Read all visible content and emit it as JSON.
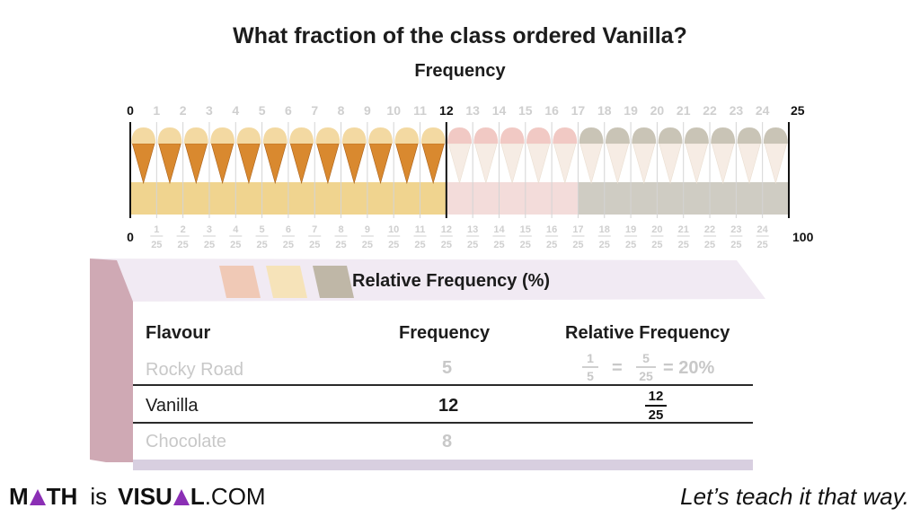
{
  "title": "What fraction of the class ordered  Vanilla?",
  "subtitle": "Frequency",
  "top_ticks": [
    "0",
    "1",
    "2",
    "3",
    "4",
    "5",
    "6",
    "7",
    "8",
    "9",
    "10",
    "11",
    "12",
    "13",
    "14",
    "15",
    "16",
    "17",
    "18",
    "19",
    "20",
    "21",
    "22",
    "23",
    "24",
    "25"
  ],
  "bottom_left_label": "0",
  "bottom_right_label": "100",
  "bottom_fractions": {
    "numerators": [
      "1",
      "2",
      "3",
      "4",
      "5",
      "6",
      "7",
      "8",
      "9",
      "10",
      "11",
      "12",
      "13",
      "14",
      "15",
      "16",
      "17",
      "18",
      "19",
      "20",
      "21",
      "22",
      "23",
      "24"
    ],
    "denominator": "25"
  },
  "segments": [
    {
      "flavour": "Vanilla",
      "count": 12,
      "color": "#f0d48f",
      "cone_top": "#f3d9a2",
      "state": "active"
    },
    {
      "flavour": "Rocky Road",
      "count": 5,
      "color": "#f3dcda",
      "cone_top": "#f1c9c4",
      "state": "faded"
    },
    {
      "flavour": "Chocolate",
      "count": 8,
      "color": "#cfccc3",
      "cone_top": "#c9c4b6",
      "state": "faded"
    }
  ],
  "relative_frequency_title": "Relative Frequency (%)",
  "table": {
    "headers": [
      "Flavour",
      "Frequency",
      "Relative Frequency"
    ],
    "rows": [
      {
        "flavour": "Rocky Road",
        "frequency": "5",
        "rf_frac_n": "1",
        "rf_frac_d": "5",
        "rf_eq1": "=",
        "rf_frac2_n": "5",
        "rf_frac2_d": "25",
        "rf_eq2": "= 20%"
      },
      {
        "flavour": "Vanilla",
        "frequency": "12",
        "rf_frac_n": "12",
        "rf_frac_d": "25"
      },
      {
        "flavour": "Chocolate",
        "frequency": "8"
      }
    ]
  },
  "footer": {
    "logo_m": "M",
    "logo_th": "TH",
    "logo_is": "is",
    "logo_v": "V",
    "logo_isu": "ISU",
    "logo_l": "L",
    "logo_com": ".COM",
    "tagline": "Let’s teach it that way."
  }
}
